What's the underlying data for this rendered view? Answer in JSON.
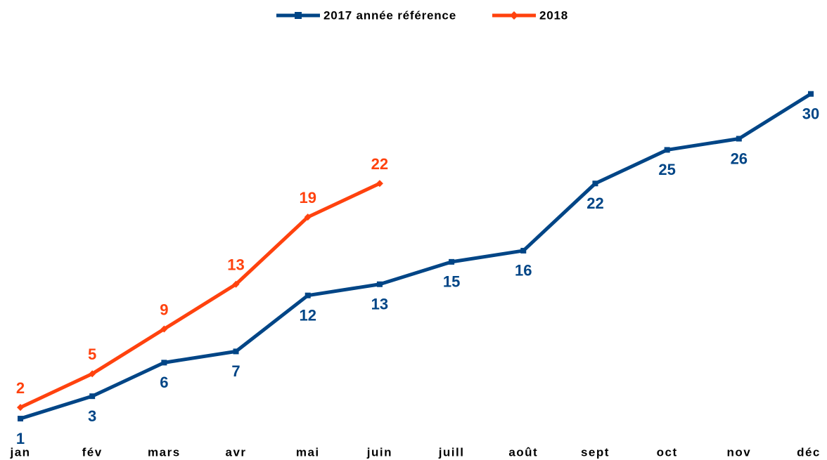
{
  "chart_data": {
    "type": "line",
    "categories": [
      "jan",
      "fév",
      "mars",
      "avr",
      "mai",
      "juin",
      "juill",
      "août",
      "sept",
      "oct",
      "nov",
      "déc"
    ],
    "series": [
      {
        "name": "2017 année référence",
        "color": "#004586",
        "values": [
          1,
          3,
          6,
          7,
          12,
          13,
          15,
          16,
          22,
          25,
          26,
          30
        ]
      },
      {
        "name": "2018",
        "color": "#ff420e",
        "values": [
          2,
          5,
          9,
          13,
          19,
          22,
          null,
          null,
          null,
          null,
          null,
          null
        ]
      }
    ],
    "ylim": [
      0,
      35
    ],
    "legend": "top"
  }
}
